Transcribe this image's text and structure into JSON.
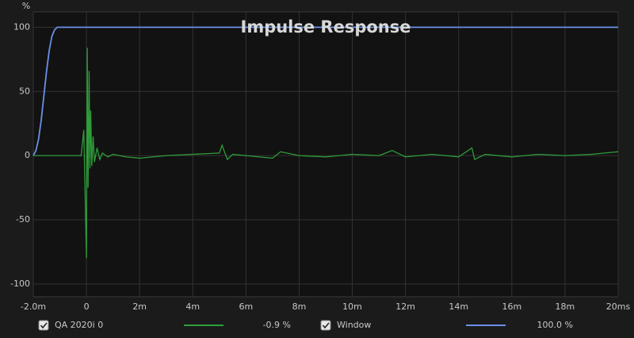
{
  "chart_data": {
    "type": "line",
    "title": "Impulse Response",
    "y_label": "%",
    "x": [
      -0.002,
      -0.0019,
      -0.0018,
      -0.0017,
      -0.0016,
      -0.0015,
      -0.0014,
      -0.0013,
      -0.0012,
      -0.0011,
      -0.001,
      -0.0005,
      -0.0002,
      -0.0001,
      0,
      3e-05,
      6e-05,
      0.0001,
      0.00013,
      0.00016,
      0.0002,
      0.00025,
      0.0003,
      0.0004,
      0.0005,
      0.0006,
      0.0008,
      0.001,
      0.0015,
      0.002,
      0.003,
      0.004,
      0.005,
      0.0051,
      0.0053,
      0.0055,
      0.006,
      0.007,
      0.0073,
      0.008,
      0.009,
      0.01,
      0.011,
      0.0115,
      0.012,
      0.013,
      0.014,
      0.0145,
      0.0146,
      0.015,
      0.016,
      0.017,
      0.018,
      0.019,
      0.02
    ],
    "series": [
      {
        "name": "QA 2020i 0",
        "color": "#2e9e3a",
        "readout": "-0.9 %",
        "values": [
          0,
          0,
          0,
          0,
          0,
          0,
          0,
          0,
          0,
          0,
          0,
          0,
          0,
          20,
          -80,
          84,
          -25,
          66,
          -10,
          35,
          -8,
          15,
          -5,
          6,
          -3,
          2,
          -1,
          1,
          -1,
          -2,
          0,
          1,
          2,
          8,
          -3,
          1,
          0,
          -2,
          3,
          0,
          -1,
          1,
          0,
          4,
          -1,
          1,
          -1,
          6,
          -3,
          1,
          -1,
          1,
          0,
          1,
          3
        ]
      },
      {
        "name": "Window",
        "color": "#6b8fe8",
        "readout": "100.0 %",
        "values": [
          0,
          4,
          13,
          28,
          47,
          66,
          82,
          93,
          98,
          100,
          100,
          100,
          100,
          100,
          100,
          100,
          100,
          100,
          100,
          100,
          100,
          100,
          100,
          100,
          100,
          100,
          100,
          100,
          100,
          100,
          100,
          100,
          100,
          100,
          100,
          100,
          100,
          100,
          100,
          100,
          100,
          100,
          100,
          100,
          100,
          100,
          100,
          100,
          100,
          100,
          100,
          100,
          100,
          100,
          100
        ]
      }
    ],
    "xlim": [
      -0.002,
      0.02
    ],
    "xticks": [
      {
        "value": -0.002,
        "label": "-2.0m"
      },
      0,
      {
        "value": 0.002,
        "label": "2m"
      },
      {
        "value": 0.004,
        "label": "4m"
      },
      {
        "value": 0.006,
        "label": "6m"
      },
      {
        "value": 0.008,
        "label": "8m"
      },
      {
        "value": 0.01,
        "label": "10m"
      },
      {
        "value": 0.012,
        "label": "12m"
      },
      {
        "value": 0.014,
        "label": "14m"
      },
      {
        "value": 0.016,
        "label": "16m"
      },
      {
        "value": 0.018,
        "label": "18m"
      },
      {
        "value": 0.02,
        "label": "20ms"
      }
    ],
    "ylim": [
      -110,
      112
    ],
    "yticks": [
      100,
      50,
      0,
      -50,
      -100
    ],
    "grid": true
  }
}
